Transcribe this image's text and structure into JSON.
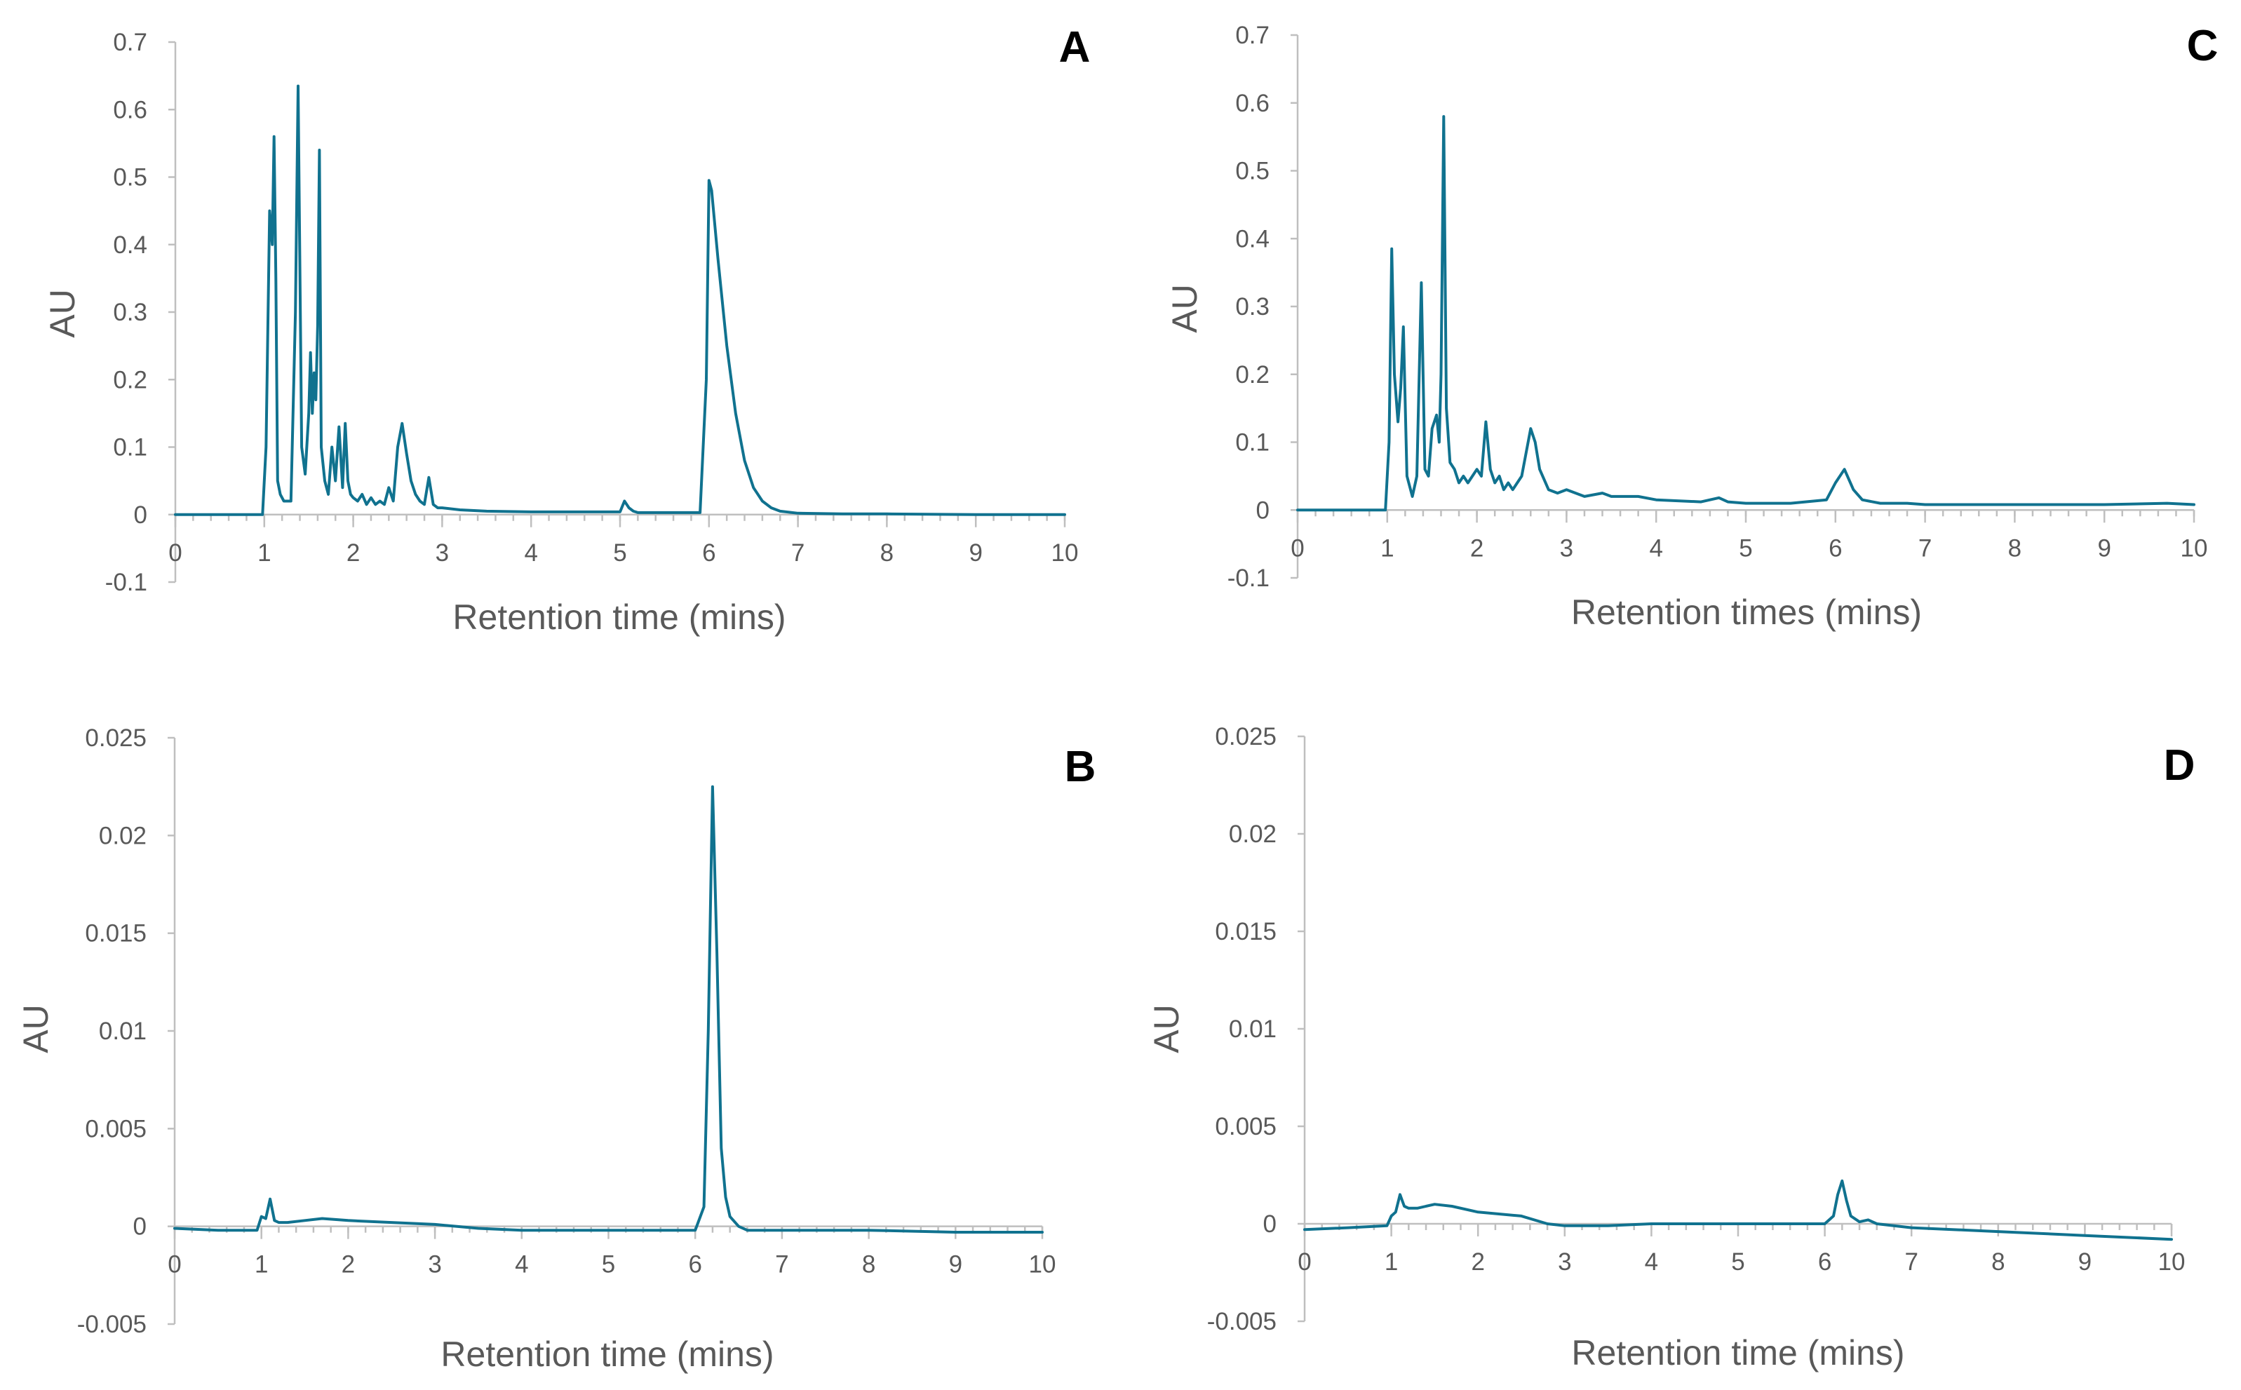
{
  "colors": {
    "series": "#10728f",
    "axis": "#bfbfbf",
    "tick_text": "#595959"
  },
  "chart_data": [
    {
      "panel": "A",
      "type": "line",
      "xlabel": "Retention time (mins)",
      "ylabel": "AU",
      "xlim": [
        0,
        10
      ],
      "ylim": [
        -0.1,
        0.7
      ],
      "xticks": [
        0,
        1,
        2,
        3,
        4,
        5,
        6,
        7,
        8,
        9,
        10
      ],
      "xtick_labels": [
        "0",
        "1",
        "2",
        "3",
        "4",
        "5",
        "6",
        "7",
        "8",
        "9",
        "10"
      ],
      "yticks": [
        -0.1,
        0,
        0.1,
        0.2,
        0.3,
        0.4,
        0.5,
        0.6,
        0.7
      ],
      "ytick_labels": [
        "-0.1",
        "0",
        "0.1",
        "0.2",
        "0.3",
        "0.4",
        "0.5",
        "0.6",
        "0.7"
      ],
      "x": [
        0,
        0.5,
        0.98,
        1.02,
        1.06,
        1.09,
        1.11,
        1.13,
        1.15,
        1.18,
        1.22,
        1.3,
        1.35,
        1.38,
        1.42,
        1.46,
        1.5,
        1.52,
        1.54,
        1.56,
        1.58,
        1.6,
        1.62,
        1.64,
        1.68,
        1.72,
        1.76,
        1.8,
        1.84,
        1.88,
        1.91,
        1.94,
        1.97,
        2.0,
        2.05,
        2.1,
        2.15,
        2.2,
        2.25,
        2.3,
        2.35,
        2.4,
        2.45,
        2.5,
        2.55,
        2.6,
        2.65,
        2.7,
        2.75,
        2.8,
        2.85,
        2.9,
        2.95,
        3.0,
        3.2,
        3.5,
        4.0,
        4.5,
        5.0,
        5.05,
        5.1,
        5.15,
        5.2,
        5.5,
        5.9,
        5.97,
        6.0,
        6.03,
        6.1,
        6.2,
        6.3,
        6.4,
        6.5,
        6.6,
        6.7,
        6.8,
        7.0,
        7.5,
        8.0,
        9.0,
        10.0
      ],
      "values": [
        0,
        0,
        0,
        0.1,
        0.45,
        0.4,
        0.56,
        0.35,
        0.05,
        0.03,
        0.02,
        0.02,
        0.3,
        0.635,
        0.1,
        0.06,
        0.15,
        0.24,
        0.15,
        0.21,
        0.17,
        0.28,
        0.54,
        0.1,
        0.05,
        0.03,
        0.1,
        0.05,
        0.13,
        0.04,
        0.135,
        0.05,
        0.03,
        0.025,
        0.02,
        0.03,
        0.015,
        0.025,
        0.015,
        0.02,
        0.015,
        0.04,
        0.02,
        0.1,
        0.135,
        0.09,
        0.05,
        0.03,
        0.02,
        0.015,
        0.055,
        0.015,
        0.01,
        0.01,
        0.007,
        0.005,
        0.004,
        0.004,
        0.004,
        0.02,
        0.01,
        0.005,
        0.003,
        0.003,
        0.003,
        0.2,
        0.495,
        0.48,
        0.38,
        0.25,
        0.15,
        0.08,
        0.04,
        0.02,
        0.01,
        0.005,
        0.002,
        0.001,
        0.001,
        0.0,
        0.0
      ]
    },
    {
      "panel": "B",
      "type": "line",
      "xlabel": "Retention time (mins)",
      "ylabel": "AU",
      "xlim": [
        0,
        10
      ],
      "ylim": [
        -0.005,
        0.025
      ],
      "xticks": [
        0,
        1,
        2,
        3,
        4,
        5,
        6,
        7,
        8,
        9,
        10
      ],
      "xtick_labels": [
        "0",
        "1",
        "2",
        "3",
        "4",
        "5",
        "6",
        "7",
        "8",
        "9",
        "10"
      ],
      "yticks": [
        -0.005,
        0,
        0.005,
        0.01,
        0.015,
        0.02,
        0.025
      ],
      "ytick_labels": [
        "-0.005",
        "0",
        "0.005",
        "0.01",
        "0.015",
        "0.02",
        "0.025"
      ],
      "x": [
        0,
        0.5,
        0.95,
        1.0,
        1.05,
        1.1,
        1.15,
        1.2,
        1.3,
        1.5,
        1.7,
        2.0,
        2.5,
        3.0,
        3.5,
        4.0,
        5.0,
        6.0,
        6.1,
        6.15,
        6.2,
        6.25,
        6.3,
        6.35,
        6.4,
        6.5,
        6.6,
        7.0,
        8.0,
        9.0,
        10.0
      ],
      "values": [
        -0.0001,
        -0.0002,
        -0.0002,
        0.0005,
        0.0004,
        0.0014,
        0.0003,
        0.0002,
        0.0002,
        0.0003,
        0.0004,
        0.0003,
        0.0002,
        0.0001,
        -0.0001,
        -0.0002,
        -0.0002,
        -0.0002,
        0.001,
        0.01,
        0.0225,
        0.014,
        0.004,
        0.0015,
        0.0005,
        0.0,
        -0.0002,
        -0.0002,
        -0.0002,
        -0.0003,
        -0.0003
      ]
    },
    {
      "panel": "C",
      "type": "line",
      "xlabel": "Retention times (mins)",
      "ylabel": "AU",
      "xlim": [
        0,
        10
      ],
      "ylim": [
        -0.1,
        0.7
      ],
      "xticks": [
        0,
        1,
        2,
        3,
        4,
        5,
        6,
        7,
        8,
        9,
        10
      ],
      "xtick_labels": [
        "0",
        "1",
        "2",
        "3",
        "4",
        "5",
        "6",
        "7",
        "8",
        "9",
        "10"
      ],
      "yticks": [
        -0.1,
        0,
        0.1,
        0.2,
        0.3,
        0.4,
        0.5,
        0.6,
        0.7
      ],
      "ytick_labels": [
        "-0.1",
        "0",
        "0.1",
        "0.2",
        "0.3",
        "0.4",
        "0.5",
        "0.6",
        "0.7"
      ],
      "x": [
        0,
        0.5,
        0.98,
        1.02,
        1.05,
        1.08,
        1.12,
        1.15,
        1.18,
        1.22,
        1.28,
        1.33,
        1.38,
        1.42,
        1.46,
        1.5,
        1.55,
        1.58,
        1.6,
        1.63,
        1.66,
        1.7,
        1.75,
        1.8,
        1.85,
        1.9,
        1.95,
        2.0,
        2.05,
        2.1,
        2.15,
        2.2,
        2.25,
        2.3,
        2.35,
        2.4,
        2.5,
        2.6,
        2.65,
        2.7,
        2.8,
        2.9,
        3.0,
        3.2,
        3.4,
        3.5,
        3.6,
        3.8,
        4.0,
        4.5,
        4.7,
        4.8,
        5.0,
        5.5,
        5.9,
        6.0,
        6.1,
        6.2,
        6.3,
        6.5,
        6.8,
        7.0,
        8.0,
        9.0,
        9.7,
        10.0
      ],
      "values": [
        0,
        0,
        0,
        0.1,
        0.385,
        0.2,
        0.13,
        0.18,
        0.27,
        0.05,
        0.02,
        0.05,
        0.335,
        0.06,
        0.05,
        0.12,
        0.14,
        0.1,
        0.2,
        0.58,
        0.15,
        0.07,
        0.06,
        0.04,
        0.05,
        0.04,
        0.05,
        0.06,
        0.05,
        0.13,
        0.06,
        0.04,
        0.05,
        0.03,
        0.04,
        0.03,
        0.05,
        0.12,
        0.1,
        0.06,
        0.03,
        0.025,
        0.03,
        0.02,
        0.025,
        0.02,
        0.02,
        0.02,
        0.015,
        0.012,
        0.018,
        0.012,
        0.01,
        0.01,
        0.015,
        0.04,
        0.06,
        0.03,
        0.015,
        0.01,
        0.01,
        0.008,
        0.008,
        0.008,
        0.01,
        0.008
      ]
    },
    {
      "panel": "D",
      "type": "line",
      "xlabel": "Retention time (mins)",
      "ylabel": "AU",
      "xlim": [
        0,
        10
      ],
      "ylim": [
        -0.005,
        0.025
      ],
      "xticks": [
        0,
        1,
        2,
        3,
        4,
        5,
        6,
        7,
        8,
        9,
        10
      ],
      "xtick_labels": [
        "0",
        "1",
        "2",
        "3",
        "4",
        "5",
        "6",
        "7",
        "8",
        "9",
        "10"
      ],
      "yticks": [
        -0.005,
        0,
        0.005,
        0.01,
        0.015,
        0.02,
        0.025
      ],
      "ytick_labels": [
        "-0.005",
        "0",
        "0.005",
        "0.01",
        "0.015",
        "0.02",
        "0.025"
      ],
      "x": [
        0,
        0.5,
        0.95,
        1.0,
        1.05,
        1.1,
        1.15,
        1.2,
        1.3,
        1.5,
        1.7,
        2.0,
        2.5,
        2.8,
        3.0,
        3.5,
        4.0,
        5.0,
        6.0,
        6.1,
        6.15,
        6.2,
        6.25,
        6.3,
        6.4,
        6.5,
        6.6,
        7.0,
        8.0,
        9.0,
        10.0
      ],
      "values": [
        -0.0003,
        -0.0002,
        -0.0001,
        0.0004,
        0.0006,
        0.0015,
        0.0009,
        0.0008,
        0.0008,
        0.001,
        0.0009,
        0.0006,
        0.0004,
        0.0,
        -0.0001,
        -0.0001,
        0.0,
        0.0,
        0.0,
        0.0004,
        0.0015,
        0.0022,
        0.0012,
        0.0004,
        0.0001,
        0.0002,
        0.0,
        -0.0002,
        -0.0004,
        -0.0006,
        -0.0008
      ]
    }
  ]
}
